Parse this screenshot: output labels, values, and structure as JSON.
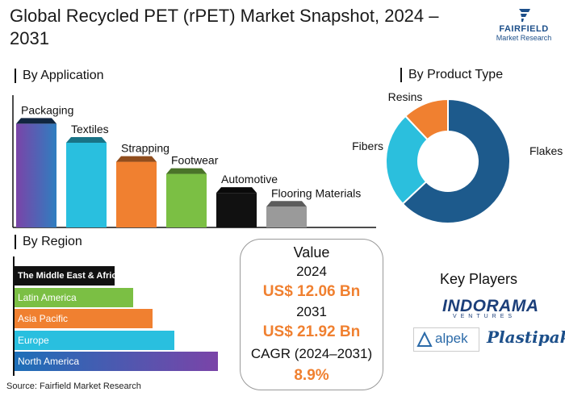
{
  "title": "Global Recycled PET (rPET) Market Snapshot, 2024 – 2031",
  "logo": {
    "brand": "FAIRFIELD",
    "sub": "Market Research"
  },
  "chart_data": [
    {
      "type": "bar",
      "title": "By Application",
      "categories": [
        "Packaging",
        "Textiles",
        "Strapping",
        "Footwear",
        "Automotive",
        "Flooring Materials"
      ],
      "values": [
        6.0,
        4.9,
        3.8,
        3.1,
        2.0,
        1.2
      ],
      "colors": [
        "#2f7ec0",
        "#29bfdf",
        "#f08030",
        "#7bbf44",
        "#111111",
        "#9a9a9a"
      ],
      "ylim": [
        0,
        7
      ]
    },
    {
      "type": "pie",
      "title": "By Product Type",
      "categories": [
        "Flakes",
        "Fibers",
        "Resins"
      ],
      "values": [
        63,
        25,
        12
      ],
      "colors": [
        "#1d5a8c",
        "#2bbfdd",
        "#f08030"
      ]
    },
    {
      "type": "bar",
      "orientation": "horizontal",
      "title": "By Region",
      "categories": [
        "The Middle East & Africa",
        "Latin America",
        "Asia Pacific",
        "Europe",
        "North America"
      ],
      "values": [
        128,
        152,
        176,
        204,
        260
      ],
      "colors": [
        "#111111",
        "#7bbf44",
        "#f08030",
        "#29bfdf",
        "#7a44a8"
      ],
      "xlim": [
        0,
        270
      ]
    }
  ],
  "value_box": {
    "heading": "Value",
    "year1": "2024",
    "value1": "US$ 12.06 Bn",
    "year2": "2031",
    "value2": "US$ 21.92 Bn",
    "cagr_label": "CAGR (2024–2031)",
    "cagr_value": "8.9%",
    "accent": "#f08030"
  },
  "key_players": {
    "title": "Key Players",
    "players": [
      {
        "name": "INDORAMA",
        "tagline": "VENTURES"
      },
      {
        "name": "alpek"
      },
      {
        "name": "Plastipak"
      }
    ]
  },
  "source": "Source: Fairfield Market Research"
}
